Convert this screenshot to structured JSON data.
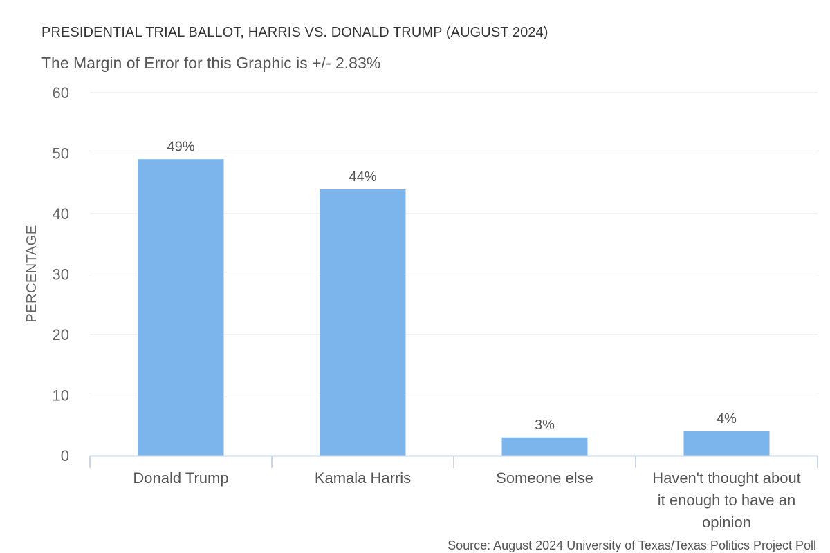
{
  "chart_data": {
    "type": "bar",
    "title": "PRESIDENTIAL TRIAL BALLOT, HARRIS VS. DONALD TRUMP (AUGUST 2024)",
    "subtitle": "The Margin of Error for this Graphic is +/- 2.83%",
    "source": "Source: August 2024 University of Texas/Texas Politics Project Poll",
    "ylabel": "PERCENTAGE",
    "xlabel": "",
    "ylim": [
      0,
      60
    ],
    "yticks": [
      0,
      10,
      20,
      30,
      40,
      50,
      60
    ],
    "categories": [
      "Donald Trump",
      "Kamala Harris",
      "Someone else",
      "Haven't thought about it enough to have an opinion"
    ],
    "values": [
      49,
      44,
      3,
      4
    ],
    "data_labels": [
      "49%",
      "44%",
      "3%",
      "4%"
    ],
    "grid": true,
    "legend": "none",
    "colors": {
      "bar": "#7cb5ec",
      "grid": "#e6e6e6",
      "axis": "#ccd6eb"
    }
  }
}
